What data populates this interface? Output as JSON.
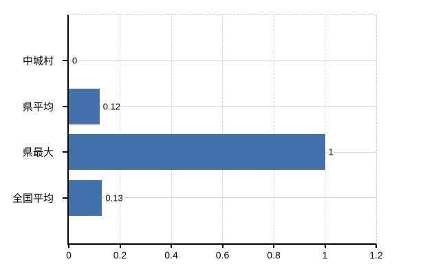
{
  "chart_data": {
    "type": "bar",
    "orientation": "horizontal",
    "title": "",
    "categories": [
      "中城村",
      "県平均",
      "県最大",
      "全国平均"
    ],
    "values": [
      0,
      0.12,
      1,
      0.13
    ],
    "value_labels": [
      "0",
      "0.12",
      "1",
      "0.13"
    ],
    "x_ticks": [
      0,
      0.2,
      0.4,
      0.6,
      0.8,
      1,
      1.2
    ],
    "x_tick_labels": [
      "0",
      "0.2",
      "0.4",
      "0.6",
      "0.8",
      "1",
      "1.2"
    ],
    "xlim": [
      0,
      1.2
    ],
    "grid": true,
    "legend": false,
    "colors": {
      "bar": "#4372ab",
      "horizontal_gridline": "#cbd5c8",
      "vertical_gridline": "#d6d0d6",
      "axis": "#000000",
      "text": "#000000",
      "background": "#ffffff"
    }
  }
}
